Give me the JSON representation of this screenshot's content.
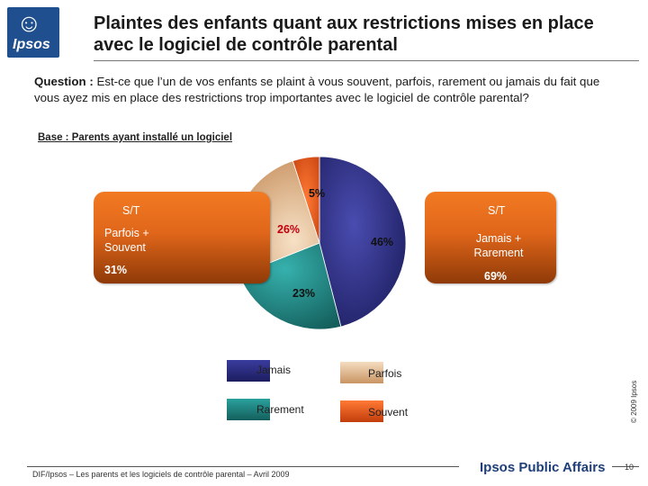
{
  "logo": {
    "text": "Ipsos"
  },
  "title": "Plaintes des enfants quant aux restrictions mises en place avec le logiciel de contrôle parental",
  "question": {
    "label": "Question :",
    "text": "Est-ce que l’un de vos enfants se plaint à vous souvent, parfois, rarement ou jamais du fait que vous ayez mis en place des restrictions trop importantes avec le logiciel de contrôle parental?"
  },
  "base": "Base : Parents ayant installé un logiciel",
  "chart_data": {
    "type": "pie",
    "title": "",
    "slices": [
      {
        "name": "Jamais",
        "label": "46%",
        "value": 46,
        "color": "#2b2d7f"
      },
      {
        "name": "Rarement",
        "label": "23%",
        "value": 23,
        "color": "#1f8a87"
      },
      {
        "name": "Parfois",
        "label": "26%",
        "value": 26,
        "color": "#e6b98a"
      },
      {
        "name": "Souvent",
        "label": "5%",
        "value": 5,
        "color": "#ea5b1e"
      }
    ],
    "legend_position": "bottom"
  },
  "summary_left": {
    "head": "S/T",
    "label": "Parfois + Souvent",
    "value": "31%"
  },
  "summary_right": {
    "head": "S/T",
    "label": "Jamais + Rarement",
    "value": "69%"
  },
  "legend": [
    {
      "name": "Jamais",
      "color": "#2b2d7f"
    },
    {
      "name": "Parfois",
      "color": "#e6b98a"
    },
    {
      "name": "Rarement",
      "color": "#1f8a87"
    },
    {
      "name": "Souvent",
      "color": "#ea5b1e"
    }
  ],
  "copyright": "© 2009 Ipsos",
  "footer": "DIF/Ipsos – Les parents et les logiciels de contrôle parental – Avril 2009",
  "brand": "Ipsos Public Affairs",
  "page_number": "10"
}
